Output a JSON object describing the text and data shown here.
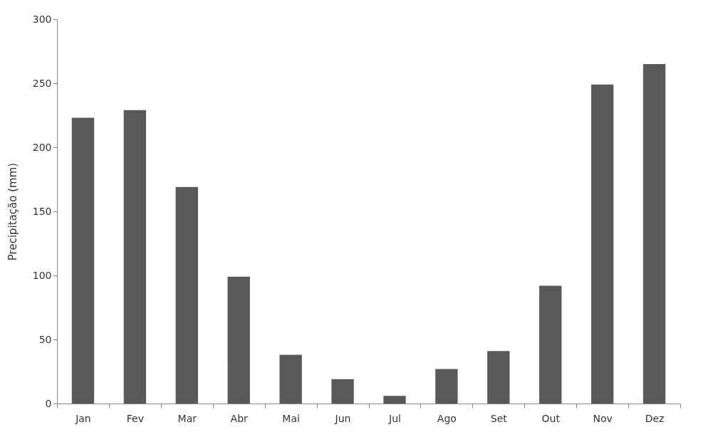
{
  "chart_data": {
    "type": "bar",
    "ylabel": "Precipitação (mm)",
    "categories": [
      "Jan",
      "Fev",
      "Mar",
      "Abr",
      "Mai",
      "Jun",
      "Jul",
      "Ago",
      "Set",
      "Out",
      "Nov",
      "Dez"
    ],
    "values": [
      223,
      229,
      169,
      99,
      38,
      19,
      6,
      27,
      41,
      92,
      249,
      265
    ],
    "color": "#595959",
    "ylim": [
      0,
      300
    ],
    "yticks": [
      0,
      50,
      100,
      150,
      200,
      250,
      300
    ],
    "grid": false
  }
}
